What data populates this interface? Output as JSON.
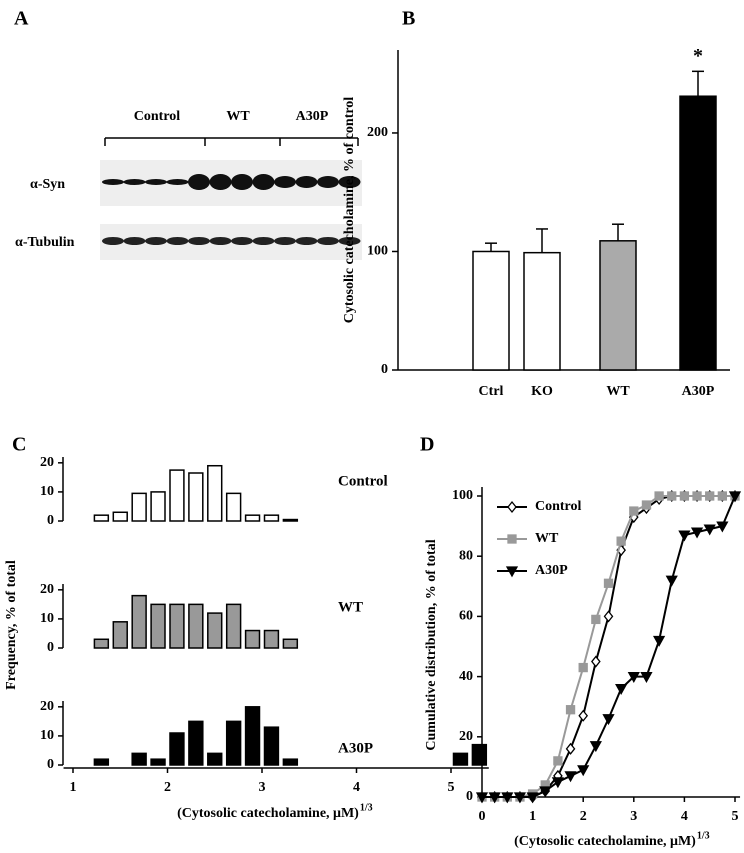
{
  "panel_a": {
    "label": "A",
    "groups": [
      "Control",
      "WT",
      "A30P"
    ],
    "rows": [
      "α-Syn",
      "α-Tubulin"
    ]
  },
  "chart_data": [
    {
      "panel": "B",
      "type": "bar",
      "y_label": "Cytosolic catecholamine, % of control",
      "categories": [
        "Ctrl",
        "KO",
        "WT",
        "A30P"
      ],
      "values": [
        100,
        99,
        109,
        231
      ],
      "errors": [
        7,
        20,
        14,
        21
      ],
      "colors": [
        "#ffffff",
        "#ffffff",
        "#aaaaaa",
        "#000000"
      ],
      "ylim": [
        0,
        270
      ],
      "yticks": [
        0,
        100,
        200
      ],
      "annotations": [
        {
          "text": "*",
          "x": "A30P"
        }
      ]
    },
    {
      "panel": "C",
      "type": "histogram",
      "x_label": "(Cytosolic catecholamine, μM)",
      "x_label_superscript": "1/3",
      "y_label": "Frequency, % of total",
      "bins": [
        1.2,
        1.4,
        1.6,
        1.8,
        2.0,
        2.2,
        2.4,
        2.6,
        2.8,
        3.0,
        3.2,
        3.4,
        3.6,
        3.8,
        4.0,
        4.2,
        4.4,
        4.6,
        4.8,
        5.0,
        5.2,
        5.4
      ],
      "series": [
        {
          "name": "Control",
          "color": "#ffffff",
          "values": [
            2,
            3,
            9.5,
            10,
            17.5,
            16.5,
            19,
            9.5,
            2,
            2,
            0.5,
            0,
            0,
            0,
            0,
            0,
            0,
            0,
            0,
            0,
            0
          ]
        },
        {
          "name": "WT",
          "color": "#999999",
          "values": [
            3,
            9,
            18,
            15,
            15,
            15,
            12,
            15,
            6,
            6,
            3,
            0,
            0,
            0,
            0,
            0,
            0,
            0,
            0,
            0,
            0
          ]
        },
        {
          "name": "A30P",
          "color": "#000000",
          "values": [
            2,
            0,
            4,
            2,
            11,
            15,
            4,
            15,
            20,
            13,
            2,
            0,
            0,
            0,
            0,
            0,
            0,
            0,
            0,
            4,
            7
          ]
        }
      ],
      "xlim": [
        0.9,
        5.4
      ],
      "xticks": [
        1,
        2,
        3,
        4,
        5
      ],
      "ylim": [
        0,
        22
      ],
      "yticks": [
        0,
        10,
        20
      ]
    },
    {
      "panel": "D",
      "type": "line",
      "x_label": "(Cytosolic catecholamine, μM)",
      "x_label_superscript": "1/3",
      "y_label": "Cumulative distribution, % of total",
      "x": [
        0,
        0.25,
        0.5,
        0.75,
        1,
        1.25,
        1.5,
        1.75,
        2,
        2.25,
        2.5,
        2.75,
        3,
        3.25,
        3.5,
        3.75,
        4,
        4.25,
        4.5,
        4.75,
        5
      ],
      "series": [
        {
          "name": "Control",
          "color": "#ffffff",
          "marker": "diamond",
          "values": [
            0,
            0,
            0,
            0,
            0,
            2,
            7,
            16,
            27,
            45,
            60,
            82,
            93,
            96,
            99,
            100,
            100,
            100,
            100,
            100,
            100
          ]
        },
        {
          "name": "WT",
          "color": "#999999",
          "marker": "square",
          "values": [
            0,
            0,
            0,
            0,
            1,
            4,
            12,
            29,
            43,
            59,
            71,
            85,
            95,
            97,
            100,
            100,
            100,
            100,
            100,
            100,
            100
          ]
        },
        {
          "name": "A30P",
          "color": "#000000",
          "marker": "triangle",
          "values": [
            0,
            0,
            0,
            0,
            0,
            2,
            5,
            7,
            9,
            17,
            26,
            36,
            40,
            40,
            52,
            72,
            87,
            88,
            89,
            90,
            100
          ]
        }
      ],
      "xlim": [
        0,
        5.1
      ],
      "ylim": [
        0,
        103
      ],
      "xticks": [
        0,
        1,
        2,
        3,
        4,
        5
      ],
      "yticks": [
        0,
        20,
        40,
        60,
        80,
        100
      ],
      "legend": "upper left"
    }
  ]
}
